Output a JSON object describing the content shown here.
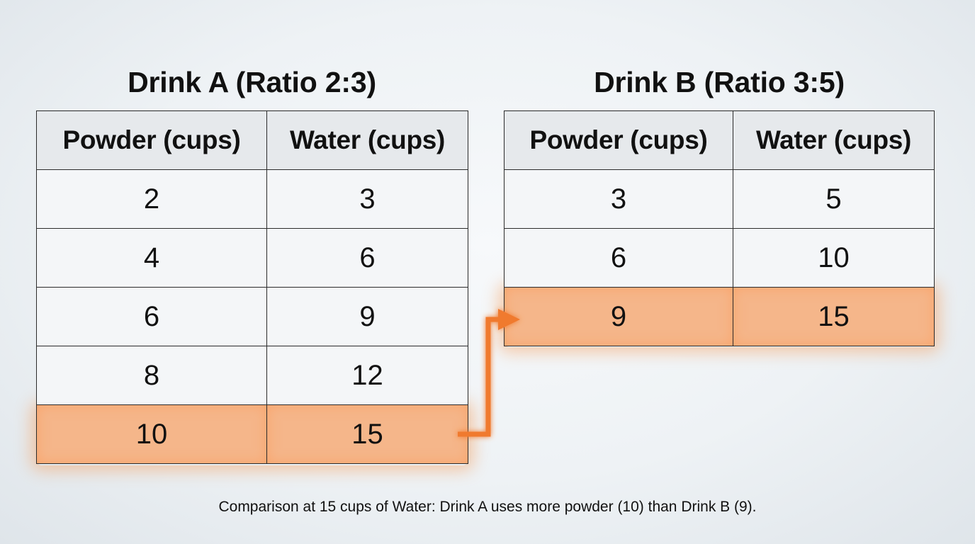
{
  "drink_a": {
    "title": "Drink A (Ratio 2:3)",
    "headers": [
      "Powder (cups)",
      "Water (cups)"
    ],
    "rows": [
      [
        "2",
        "3"
      ],
      [
        "4",
        "6"
      ],
      [
        "6",
        "9"
      ],
      [
        "8",
        "12"
      ],
      [
        "10",
        "15"
      ]
    ],
    "highlight_row": 4
  },
  "drink_b": {
    "title": "Drink B (Ratio 3:5)",
    "headers": [
      "Powder (cups)",
      "Water (cups)"
    ],
    "rows": [
      [
        "3",
        "5"
      ],
      [
        "6",
        "10"
      ],
      [
        "9",
        "15"
      ]
    ],
    "highlight_row": 2
  },
  "highlight_color": "#f5b68a",
  "arrow_color": "#f07a2e",
  "caption": "Comparison at 15 cups of Water: Drink A uses more powder (10) than Drink B (9)."
}
